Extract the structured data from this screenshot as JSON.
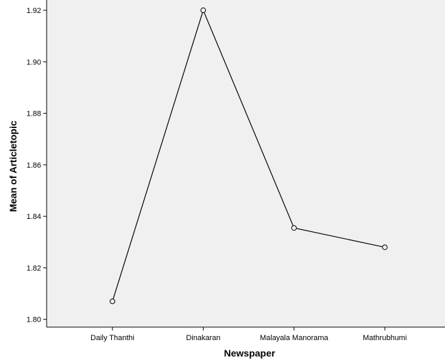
{
  "chart_data": {
    "type": "line",
    "xlabel": "Newspaper",
    "ylabel": "Mean of Articletopic",
    "categories": [
      "Daily Thanthi",
      "Dinakaran",
      "Malayala Manorama",
      "Mathrubhumi"
    ],
    "series": [
      {
        "values": [
          1.807,
          1.92,
          1.8355,
          1.828
        ]
      }
    ],
    "ylim": [
      1.797,
      1.924
    ],
    "yticks": [
      "1.80",
      "1.82",
      "1.84",
      "1.86",
      "1.88",
      "1.90",
      "1.92"
    ],
    "grid": false,
    "marker": "open-circle",
    "colors": {
      "plot_background": "#f0f0f0",
      "line": "#000000",
      "axis": "#000000"
    }
  }
}
